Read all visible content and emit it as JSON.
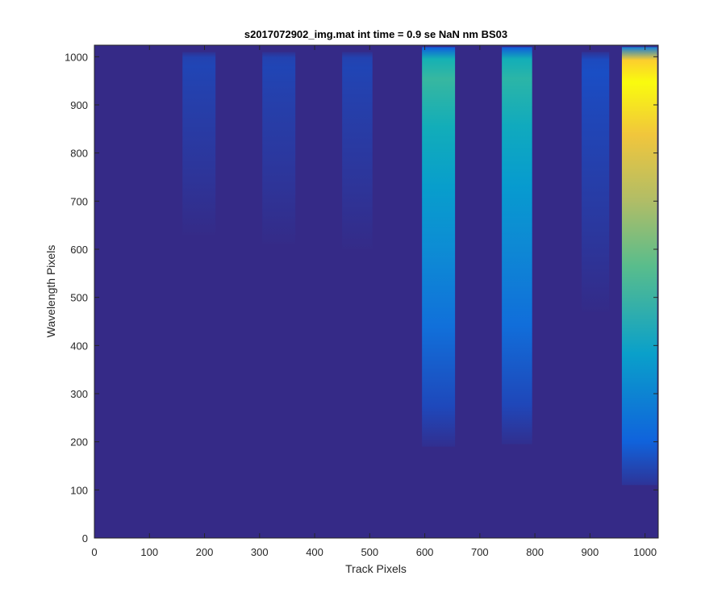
{
  "chart_data": {
    "type": "heatmap",
    "title": "s2017072902_img.mat int time = 0.9 se  NaN nm BS03",
    "xlabel": "Track Pixels",
    "ylabel": "Wavelength Pixels",
    "xlim": [
      0,
      1024
    ],
    "ylim": [
      0,
      1024
    ],
    "xticks": [
      0,
      100,
      200,
      300,
      400,
      500,
      600,
      700,
      800,
      900,
      1000
    ],
    "yticks": [
      0,
      100,
      200,
      300,
      400,
      500,
      600,
      700,
      800,
      900,
      1000
    ],
    "grid": false,
    "colormap": "parula",
    "background_color": "#352a87",
    "series": [
      {
        "x_start": 160,
        "x_end": 220,
        "y_start": 630,
        "y_end": 1010,
        "peak_intensity": 0.06
      },
      {
        "x_start": 305,
        "x_end": 365,
        "y_start": 610,
        "y_end": 1010,
        "peak_intensity": 0.06
      },
      {
        "x_start": 450,
        "x_end": 505,
        "y_start": 600,
        "y_end": 1010,
        "peak_intensity": 0.06
      },
      {
        "x_start": 595,
        "x_end": 655,
        "y_start": 190,
        "y_end": 1020,
        "peak_intensity": 0.5
      },
      {
        "x_start": 740,
        "x_end": 795,
        "y_start": 195,
        "y_end": 1020,
        "peak_intensity": 0.48
      },
      {
        "x_start": 885,
        "x_end": 935,
        "y_start": 470,
        "y_end": 1010,
        "peak_intensity": 0.08
      },
      {
        "x_start": 958,
        "x_end": 1022,
        "y_start": 110,
        "y_end": 1020,
        "peak_intensity": 1.0
      }
    ]
  }
}
